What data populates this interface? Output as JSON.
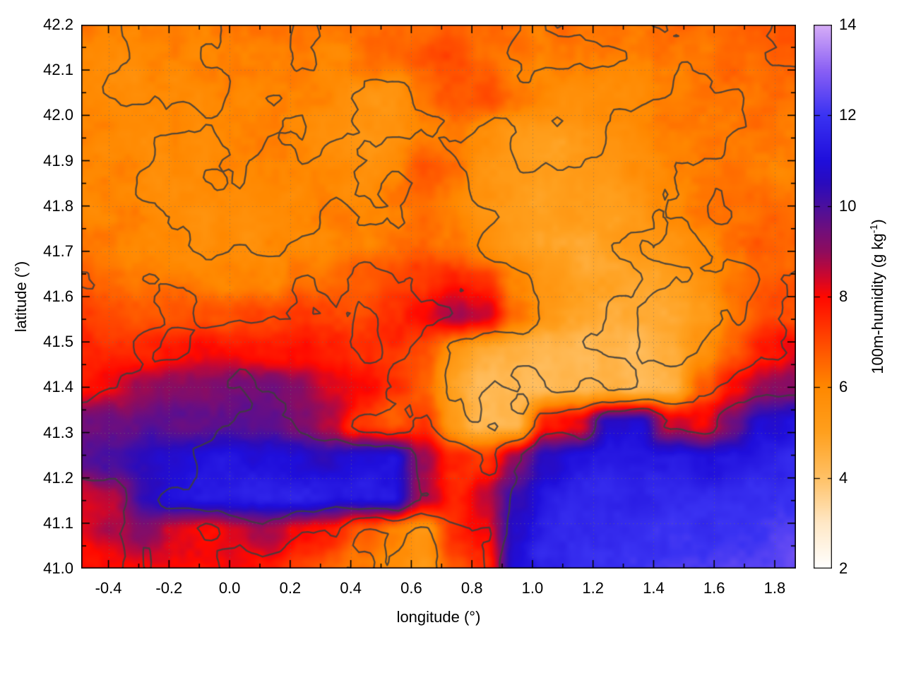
{
  "figure": {
    "background": "#ffffff"
  },
  "axes": {
    "xlabel": "longitude (°)",
    "ylabel": "latitude (°)",
    "xlim": [
      -0.49,
      1.87
    ],
    "ylim": [
      41.0,
      42.2
    ],
    "xticks": [
      {
        "v": -0.4,
        "label": "-0.4"
      },
      {
        "v": -0.2,
        "label": "-0.2"
      },
      {
        "v": 0.0,
        "label": "0.0"
      },
      {
        "v": 0.2,
        "label": "0.2"
      },
      {
        "v": 0.4,
        "label": "0.4"
      },
      {
        "v": 0.6,
        "label": "0.6"
      },
      {
        "v": 0.8,
        "label": "0.8"
      },
      {
        "v": 1.0,
        "label": "1.0"
      },
      {
        "v": 1.2,
        "label": "1.2"
      },
      {
        "v": 1.4,
        "label": "1.4"
      },
      {
        "v": 1.6,
        "label": "1.6"
      },
      {
        "v": 1.8,
        "label": "1.8"
      }
    ],
    "yticks": [
      {
        "v": 41.0,
        "label": "41.0"
      },
      {
        "v": 41.1,
        "label": "41.1"
      },
      {
        "v": 41.2,
        "label": "41.2"
      },
      {
        "v": 41.3,
        "label": "41.3"
      },
      {
        "v": 41.4,
        "label": "41.4"
      },
      {
        "v": 41.5,
        "label": "41.5"
      },
      {
        "v": 41.6,
        "label": "41.6"
      },
      {
        "v": 41.7,
        "label": "41.7"
      },
      {
        "v": 41.8,
        "label": "41.8"
      },
      {
        "v": 41.9,
        "label": "41.9"
      },
      {
        "v": 42.0,
        "label": "42.0"
      },
      {
        "v": 42.1,
        "label": "42.1"
      },
      {
        "v": 42.2,
        "label": "42.2"
      }
    ],
    "minor_x_step": 0.1,
    "minor_y_step": 0.05,
    "grid_style": "dotted",
    "grid_color": "#6e6e6e"
  },
  "colorbar": {
    "label_prefix": "100m-humidity (g kg",
    "label_sup": "-1",
    "label_suffix": ")",
    "min": 2,
    "max": 14,
    "ticks": [
      {
        "v": 2,
        "label": "2"
      },
      {
        "v": 4,
        "label": "4"
      },
      {
        "v": 6,
        "label": "6"
      },
      {
        "v": 8,
        "label": "8"
      },
      {
        "v": 10,
        "label": "10"
      },
      {
        "v": 12,
        "label": "12"
      },
      {
        "v": 14,
        "label": "14"
      }
    ]
  },
  "chart_data": {
    "type": "heatmap",
    "title": "",
    "xlabel": "longitude (°)",
    "ylabel": "latitude (°)",
    "zlabel": "100m-humidity (g kg-1)",
    "x_range": [
      -0.49,
      1.87
    ],
    "y_range": [
      41.0,
      42.2
    ],
    "z_range": [
      2,
      14
    ],
    "grid_cols": 24,
    "grid_rows": 16,
    "row_order": "north_to_south (lat 42.2 first)",
    "palette": [
      [
        2.0,
        "#ffffff"
      ],
      [
        3.0,
        "#ffe8c6"
      ],
      [
        4.0,
        "#ffc166"
      ],
      [
        5.0,
        "#ffa01e"
      ],
      [
        6.0,
        "#ff8800"
      ],
      [
        7.0,
        "#ff4a00"
      ],
      [
        8.0,
        "#ff0800"
      ],
      [
        8.5,
        "#c70732"
      ],
      [
        9.0,
        "#8e0c5e"
      ],
      [
        9.5,
        "#6e0e7e"
      ],
      [
        10.0,
        "#4a0f9e"
      ],
      [
        10.5,
        "#2a0bbd"
      ],
      [
        11.0,
        "#1f0edb"
      ],
      [
        12.0,
        "#3a32f2"
      ],
      [
        13.0,
        "#8a60f4"
      ],
      [
        14.0,
        "#d7aef7"
      ]
    ],
    "humidity_g_per_kg": [
      [
        6.2,
        6.1,
        6.0,
        6.0,
        6.1,
        6.2,
        6.3,
        6.2,
        6.1,
        6.4,
        6.6,
        6.4,
        6.8,
        6.6,
        6.3,
        6.2,
        6.4,
        6.3,
        6.2,
        6.4,
        6.5,
        6.6,
        6.7,
        6.8
      ],
      [
        6.1,
        6.0,
        5.9,
        6.0,
        6.0,
        6.1,
        6.2,
        6.1,
        6.0,
        6.2,
        6.5,
        6.9,
        7.0,
        6.5,
        6.2,
        6.1,
        6.2,
        6.2,
        6.1,
        6.3,
        6.4,
        6.5,
        6.6,
        6.6
      ],
      [
        6.0,
        5.9,
        5.8,
        5.9,
        6.0,
        6.0,
        6.1,
        6.0,
        5.9,
        5.6,
        5.3,
        6.2,
        6.8,
        6.9,
        6.4,
        6.0,
        5.8,
        5.9,
        6.0,
        6.2,
        6.3,
        6.4,
        6.5,
        6.4
      ],
      [
        6.0,
        5.9,
        5.8,
        5.8,
        5.9,
        6.0,
        6.0,
        5.9,
        5.8,
        5.5,
        5.4,
        6.0,
        6.3,
        5.6,
        5.2,
        5.1,
        5.3,
        5.6,
        5.9,
        6.1,
        6.2,
        6.3,
        6.3,
        6.2
      ],
      [
        6.0,
        6.0,
        5.9,
        5.8,
        5.8,
        5.9,
        6.0,
        6.0,
        5.9,
        5.8,
        6.0,
        6.8,
        6.4,
        5.5,
        5.1,
        5.0,
        5.2,
        5.4,
        5.7,
        6.0,
        6.1,
        6.2,
        6.2,
        6.1
      ],
      [
        5.9,
        6.0,
        6.0,
        5.9,
        5.8,
        5.8,
        5.9,
        6.0,
        6.1,
        6.0,
        6.2,
        6.4,
        6.0,
        5.4,
        5.1,
        5.0,
        5.1,
        5.2,
        5.5,
        5.8,
        6.2,
        6.4,
        6.5,
        6.3
      ],
      [
        6.2,
        6.1,
        6.0,
        5.9,
        5.8,
        5.7,
        5.8,
        5.9,
        6.0,
        6.1,
        6.3,
        6.5,
        6.2,
        5.6,
        5.2,
        5.0,
        4.9,
        5.0,
        5.3,
        5.6,
        6.0,
        6.4,
        6.6,
        6.5
      ],
      [
        6.6,
        6.5,
        6.3,
        6.2,
        6.1,
        6.0,
        6.1,
        6.2,
        6.4,
        6.6,
        6.9,
        7.2,
        7.6,
        7.2,
        6.0,
        5.3,
        4.9,
        4.8,
        4.9,
        5.1,
        5.5,
        6.2,
        6.6,
        6.7
      ],
      [
        7.1,
        7.0,
        6.8,
        6.7,
        6.8,
        6.9,
        7.0,
        7.4,
        7.2,
        7.0,
        7.6,
        8.0,
        8.8,
        8.4,
        6.5,
        5.2,
        4.7,
        4.5,
        4.6,
        4.8,
        5.3,
        6.4,
        7.0,
        6.9
      ],
      [
        7.6,
        7.5,
        7.6,
        7.8,
        8.0,
        8.0,
        7.9,
        8.0,
        7.6,
        7.2,
        7.4,
        7.0,
        5.5,
        4.7,
        4.5,
        4.4,
        4.4,
        4.3,
        4.4,
        4.6,
        5.6,
        6.8,
        7.8,
        8.2
      ],
      [
        7.9,
        8.3,
        8.8,
        9.2,
        9.3,
        9.5,
        9.4,
        9.0,
        8.4,
        8.0,
        7.4,
        6.6,
        5.0,
        4.3,
        4.1,
        4.3,
        4.5,
        4.4,
        4.2,
        4.5,
        6.8,
        8.0,
        9.0,
        9.2
      ],
      [
        9.4,
        9.6,
        9.7,
        9.7,
        9.8,
        9.8,
        9.6,
        9.3,
        8.6,
        7.2,
        6.8,
        7.4,
        5.2,
        4.2,
        4.4,
        7.8,
        8.2,
        10.6,
        10.8,
        8.4,
        8.0,
        9.6,
        10.8,
        11.0
      ],
      [
        10.0,
        10.2,
        10.6,
        11.0,
        11.2,
        11.2,
        11.0,
        10.8,
        10.6,
        10.9,
        11.0,
        9.0,
        7.6,
        7.2,
        9.2,
        10.5,
        11.2,
        11.4,
        11.3,
        11.2,
        11.0,
        11.2,
        11.4,
        11.6
      ],
      [
        8.4,
        8.8,
        10.4,
        11.0,
        11.3,
        11.4,
        11.5,
        11.4,
        11.3,
        11.4,
        11.3,
        9.0,
        7.6,
        8.6,
        10.2,
        11.4,
        11.6,
        11.6,
        11.5,
        11.6,
        11.7,
        11.8,
        11.9,
        12.0
      ],
      [
        8.0,
        8.6,
        9.2,
        8.4,
        8.0,
        8.4,
        8.8,
        8.2,
        7.8,
        6.6,
        6.2,
        5.4,
        7.4,
        8.0,
        10.8,
        11.6,
        11.8,
        11.8,
        11.9,
        12.0,
        12.0,
        12.1,
        12.2,
        12.3
      ],
      [
        7.8,
        7.9,
        8.0,
        8.0,
        7.9,
        8.0,
        7.8,
        7.2,
        6.6,
        6.2,
        5.8,
        5.2,
        6.8,
        7.6,
        11.0,
        11.6,
        11.9,
        12.0,
        12.1,
        12.2,
        12.3,
        12.4,
        12.5,
        12.6
      ]
    ],
    "contours": {
      "levels": [
        1.0,
        1.8,
        2.6,
        3.4
      ],
      "proxy_base": 2.4,
      "proxy_slope": -0.35,
      "proxy_hum_clamp": [
        3,
        12
      ],
      "color": "#3d3d3d",
      "line_width": 2.3
    },
    "texture_noise": {
      "amp1": 0.22,
      "scale1": 34,
      "amp2": 0.12,
      "scale2": 11,
      "seed": 7
    },
    "contour_noise": {
      "amp1": 0.55,
      "scale1": 130,
      "amp2": 0.35,
      "scale2": 45,
      "amp3": 0.12,
      "scale3": 15,
      "seed": 31
    }
  }
}
